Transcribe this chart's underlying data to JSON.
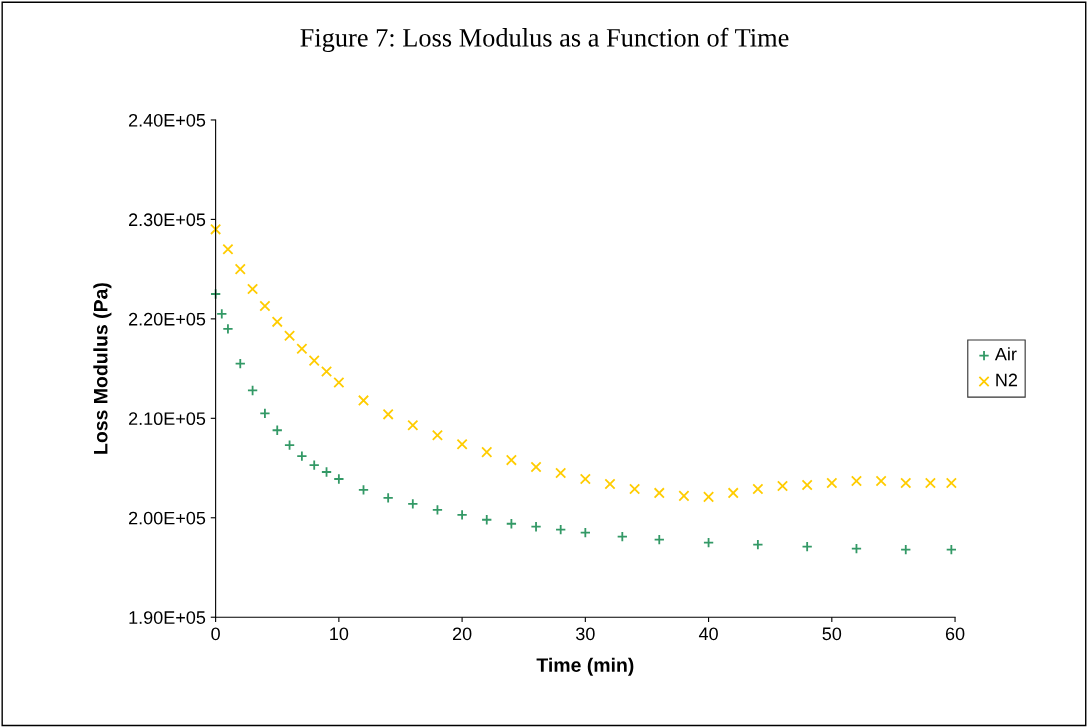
{
  "chart_data": {
    "type": "scatter",
    "title": "Figure 7: Loss Modulus as a Function of Time",
    "xlabel": "Time (min)",
    "ylabel": "Loss Modulus (Pa)",
    "xlim": [
      0,
      60
    ],
    "xticks": [
      0,
      10,
      20,
      30,
      40,
      50,
      60
    ],
    "ylim": [
      190000,
      240000
    ],
    "yticks": [
      {
        "value": 190000,
        "label": "1.90E+05"
      },
      {
        "value": 200000,
        "label": "2.00E+05"
      },
      {
        "value": 210000,
        "label": "2.10E+05"
      },
      {
        "value": 220000,
        "label": "2.20E+05"
      },
      {
        "value": 230000,
        "label": "2.30E+05"
      },
      {
        "value": 240000,
        "label": "2.40E+05"
      }
    ],
    "grid": false,
    "legend": "right",
    "series": [
      {
        "name": "Air",
        "color": "#339966",
        "marker": "cross",
        "x": [
          0,
          0.5,
          1,
          2,
          3,
          4,
          5,
          6,
          7,
          8,
          9,
          10,
          12,
          14,
          16,
          18,
          20,
          22,
          24,
          26,
          28,
          30,
          33,
          36,
          40,
          44,
          48,
          52,
          56,
          59.7
        ],
        "values": [
          222500,
          220500,
          219000,
          215500,
          212800,
          210500,
          208800,
          207300,
          206200,
          205300,
          204600,
          203900,
          202800,
          202000,
          201400,
          200800,
          200300,
          199800,
          199400,
          199100,
          198800,
          198500,
          198100,
          197800,
          197500,
          197300,
          197100,
          196900,
          196800,
          196800
        ]
      },
      {
        "name": "N2",
        "color": "#ffcc00",
        "marker": "x",
        "x": [
          0,
          1,
          2,
          3,
          4,
          5,
          6,
          7,
          8,
          9,
          10,
          12,
          14,
          16,
          18,
          20,
          22,
          24,
          26,
          28,
          30,
          32,
          34,
          36,
          38,
          40,
          42,
          44,
          46,
          48,
          50,
          52,
          54,
          56,
          58,
          59.7
        ],
        "values": [
          229000,
          227000,
          225000,
          223000,
          221300,
          219700,
          218300,
          217000,
          215800,
          214700,
          213600,
          211800,
          210400,
          209300,
          208300,
          207400,
          206600,
          205800,
          205100,
          204500,
          203900,
          203400,
          202900,
          202500,
          202200,
          202100,
          202500,
          202900,
          203200,
          203300,
          203500,
          203700,
          203700,
          203500,
          203500,
          203500
        ]
      }
    ]
  }
}
